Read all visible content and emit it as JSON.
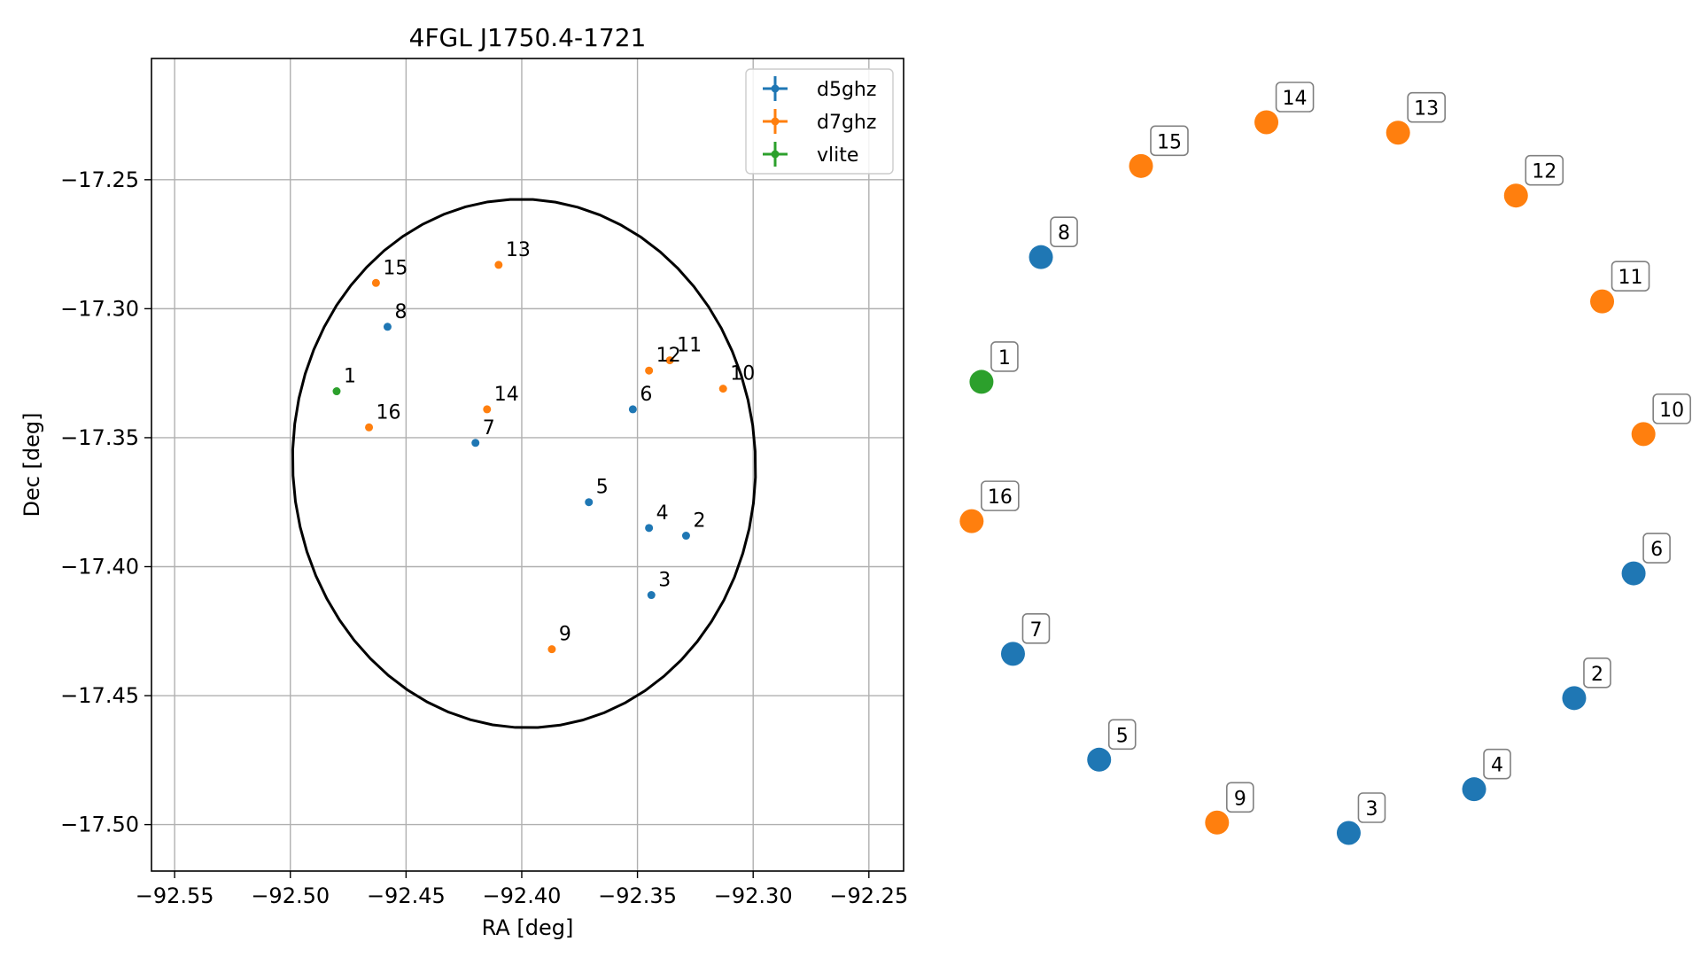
{
  "chart_data": {
    "type": "scatter",
    "title": "4FGL J1750.4-1721",
    "xlabel": "RA [deg]",
    "ylabel": "Dec [deg]",
    "xlim": [
      -92.56,
      -92.235
    ],
    "ylim": [
      -17.518,
      -17.203
    ],
    "xticks": [
      -92.55,
      -92.5,
      -92.45,
      -92.4,
      -92.35,
      -92.3,
      -92.25
    ],
    "xtick_labels": [
      "−92.55",
      "−92.50",
      "−92.45",
      "−92.40",
      "−92.35",
      "−92.30",
      "−92.25"
    ],
    "yticks": [
      -17.25,
      -17.3,
      -17.35,
      -17.4,
      -17.45,
      -17.5
    ],
    "ytick_labels": [
      "−17.25",
      "−17.30",
      "−17.35",
      "−17.40",
      "−17.45",
      "−17.50"
    ],
    "grid": true,
    "legend_position": "top-right",
    "colors": {
      "d5ghz": "#1f77b4",
      "d7ghz": "#ff7f0e",
      "vlite": "#2ca02c"
    },
    "series": [
      {
        "name": "d5ghz",
        "points": [
          {
            "id": "2",
            "x": -92.329,
            "y": -17.388
          },
          {
            "id": "3",
            "x": -92.344,
            "y": -17.411
          },
          {
            "id": "4",
            "x": -92.345,
            "y": -17.385
          },
          {
            "id": "5",
            "x": -92.371,
            "y": -17.375
          },
          {
            "id": "6",
            "x": -92.352,
            "y": -17.339
          },
          {
            "id": "7",
            "x": -92.42,
            "y": -17.352
          },
          {
            "id": "8",
            "x": -92.458,
            "y": -17.307
          }
        ]
      },
      {
        "name": "d7ghz",
        "points": [
          {
            "id": "9",
            "x": -92.387,
            "y": -17.432
          },
          {
            "id": "10",
            "x": -92.313,
            "y": -17.331
          },
          {
            "id": "11",
            "x": -92.336,
            "y": -17.32
          },
          {
            "id": "12",
            "x": -92.345,
            "y": -17.324
          },
          {
            "id": "13",
            "x": -92.41,
            "y": -17.283
          },
          {
            "id": "14",
            "x": -92.415,
            "y": -17.339
          },
          {
            "id": "15",
            "x": -92.463,
            "y": -17.29
          },
          {
            "id": "16",
            "x": -92.466,
            "y": -17.346
          }
        ]
      },
      {
        "name": "vlite",
        "points": [
          {
            "id": "1",
            "x": -92.48,
            "y": -17.332
          }
        ]
      }
    ],
    "ellipse": {
      "center": [
        -92.399,
        -17.36
      ],
      "ra_radius": 0.1,
      "dec_radius": 0.1025,
      "rotation_deg": -3
    },
    "marker_panel": {
      "description_order": [
        "13",
        "12",
        "11",
        "10",
        "6",
        "2",
        "4",
        "3",
        "9",
        "5",
        "7",
        "16",
        "1",
        "8",
        "15",
        "14"
      ],
      "markers": [
        {
          "id": "13",
          "series": "d7ghz"
        },
        {
          "id": "12",
          "series": "d7ghz"
        },
        {
          "id": "11",
          "series": "d7ghz"
        },
        {
          "id": "10",
          "series": "d7ghz"
        },
        {
          "id": "6",
          "series": "d5ghz"
        },
        {
          "id": "2",
          "series": "d5ghz"
        },
        {
          "id": "4",
          "series": "d5ghz"
        },
        {
          "id": "3",
          "series": "d5ghz"
        },
        {
          "id": "9",
          "series": "d7ghz"
        },
        {
          "id": "5",
          "series": "d5ghz"
        },
        {
          "id": "7",
          "series": "d5ghz"
        },
        {
          "id": "16",
          "series": "d7ghz"
        },
        {
          "id": "1",
          "series": "vlite"
        },
        {
          "id": "8",
          "series": "d5ghz"
        },
        {
          "id": "15",
          "series": "d7ghz"
        },
        {
          "id": "14",
          "series": "d7ghz"
        }
      ]
    }
  }
}
